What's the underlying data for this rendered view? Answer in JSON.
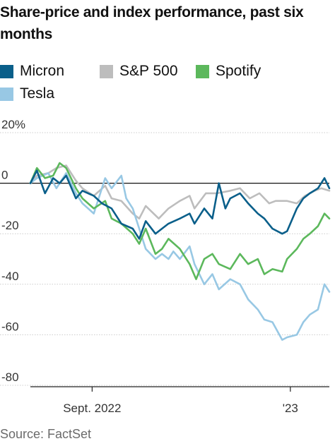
{
  "title": "Share-price and index performance, past six months",
  "source": "Source: FactSet",
  "legend": [
    {
      "name": "Micron",
      "color": "#0a5f8a"
    },
    {
      "name": "S&P 500",
      "color": "#bdbdbd"
    },
    {
      "name": "Spotify",
      "color": "#5cb85c"
    },
    {
      "name": "Tesla",
      "color": "#98c8e4"
    }
  ],
  "chart_data": {
    "type": "line",
    "ylim": [
      -80,
      20
    ],
    "yticks": [
      20,
      0,
      -20,
      -40,
      -60,
      -80
    ],
    "ytick_labels": [
      "20%",
      "0",
      "-20",
      "-40",
      "-60",
      "-80"
    ],
    "xlim": [
      "2022-07-25",
      "2023-01-25"
    ],
    "xticks": [
      {
        "date": "2022-09-01",
        "label": "Sept. 2022"
      },
      {
        "date": "2023-01-01",
        "label": "'23"
      }
    ],
    "series": [
      {
        "name": "S&P 500",
        "color": "#bdbdbd",
        "points": [
          [
            "2022-07-25",
            0
          ],
          [
            "2022-07-29",
            3
          ],
          [
            "2022-08-05",
            4
          ],
          [
            "2022-08-10",
            6
          ],
          [
            "2022-08-16",
            7
          ],
          [
            "2022-08-22",
            1
          ],
          [
            "2022-08-26",
            -2
          ],
          [
            "2022-09-02",
            -5
          ],
          [
            "2022-09-09",
            -1
          ],
          [
            "2022-09-13",
            -6
          ],
          [
            "2022-09-19",
            -7
          ],
          [
            "2022-09-26",
            -12
          ],
          [
            "2022-09-30",
            -14
          ],
          [
            "2022-10-04",
            -9
          ],
          [
            "2022-10-12",
            -14
          ],
          [
            "2022-10-18",
            -10
          ],
          [
            "2022-10-25",
            -7
          ],
          [
            "2022-10-31",
            -5
          ],
          [
            "2022-11-03",
            -10
          ],
          [
            "2022-11-10",
            -4
          ],
          [
            "2022-11-17",
            -4
          ],
          [
            "2022-11-25",
            -3
          ],
          [
            "2022-12-01",
            -2
          ],
          [
            "2022-12-07",
            -6
          ],
          [
            "2022-12-13",
            -4
          ],
          [
            "2022-12-19",
            -8
          ],
          [
            "2022-12-23",
            -7
          ],
          [
            "2022-12-30",
            -7
          ],
          [
            "2023-01-05",
            -8
          ],
          [
            "2023-01-10",
            -5
          ],
          [
            "2023-01-16",
            -3
          ],
          [
            "2023-01-20",
            -2
          ],
          [
            "2023-01-25",
            -3
          ]
        ]
      },
      {
        "name": "Tesla",
        "color": "#98c8e4",
        "points": [
          [
            "2022-07-25",
            0
          ],
          [
            "2022-07-29",
            2
          ],
          [
            "2022-08-05",
            4
          ],
          [
            "2022-08-10",
            -2
          ],
          [
            "2022-08-16",
            4
          ],
          [
            "2022-08-22",
            -4
          ],
          [
            "2022-08-26",
            -8
          ],
          [
            "2022-09-02",
            -12
          ],
          [
            "2022-09-09",
            2
          ],
          [
            "2022-09-13",
            -2
          ],
          [
            "2022-09-19",
            3
          ],
          [
            "2022-09-22",
            -6
          ],
          [
            "2022-09-26",
            -10
          ],
          [
            "2022-09-30",
            -18
          ],
          [
            "2022-10-04",
            -26
          ],
          [
            "2022-10-10",
            -30
          ],
          [
            "2022-10-14",
            -28
          ],
          [
            "2022-10-18",
            -30
          ],
          [
            "2022-10-21",
            -27
          ],
          [
            "2022-10-25",
            -30
          ],
          [
            "2022-10-31",
            -25
          ],
          [
            "2022-11-03",
            -32
          ],
          [
            "2022-11-09",
            -40
          ],
          [
            "2022-11-14",
            -36
          ],
          [
            "2022-11-18",
            -42
          ],
          [
            "2022-11-25",
            -38
          ],
          [
            "2022-12-01",
            -40
          ],
          [
            "2022-12-06",
            -46
          ],
          [
            "2022-12-12",
            -50
          ],
          [
            "2022-12-16",
            -54
          ],
          [
            "2022-12-21",
            -55
          ],
          [
            "2022-12-27",
            -62
          ],
          [
            "2022-12-30",
            -61
          ],
          [
            "2023-01-05",
            -60
          ],
          [
            "2023-01-09",
            -55
          ],
          [
            "2023-01-13",
            -52
          ],
          [
            "2023-01-18",
            -50
          ],
          [
            "2023-01-22",
            -40
          ],
          [
            "2023-01-25",
            -43
          ]
        ]
      },
      {
        "name": "Spotify",
        "color": "#5cb85c",
        "points": [
          [
            "2022-07-25",
            0
          ],
          [
            "2022-07-29",
            6
          ],
          [
            "2022-08-03",
            2
          ],
          [
            "2022-08-08",
            3
          ],
          [
            "2022-08-12",
            8
          ],
          [
            "2022-08-16",
            6
          ],
          [
            "2022-08-22",
            -2
          ],
          [
            "2022-08-26",
            -6
          ],
          [
            "2022-09-02",
            -10
          ],
          [
            "2022-09-09",
            -7
          ],
          [
            "2022-09-13",
            -14
          ],
          [
            "2022-09-19",
            -16
          ],
          [
            "2022-09-26",
            -20
          ],
          [
            "2022-09-30",
            -24
          ],
          [
            "2022-10-04",
            -18
          ],
          [
            "2022-10-10",
            -28
          ],
          [
            "2022-10-14",
            -26
          ],
          [
            "2022-10-18",
            -22
          ],
          [
            "2022-10-25",
            -26
          ],
          [
            "2022-10-31",
            -32
          ],
          [
            "2022-11-04",
            -38
          ],
          [
            "2022-11-09",
            -30
          ],
          [
            "2022-11-14",
            -28
          ],
          [
            "2022-11-18",
            -32
          ],
          [
            "2022-11-25",
            -34
          ],
          [
            "2022-12-01",
            -28
          ],
          [
            "2022-12-06",
            -32
          ],
          [
            "2022-12-12",
            -30
          ],
          [
            "2022-12-16",
            -36
          ],
          [
            "2022-12-21",
            -34
          ],
          [
            "2022-12-27",
            -35
          ],
          [
            "2022-12-30",
            -30
          ],
          [
            "2023-01-05",
            -26
          ],
          [
            "2023-01-09",
            -22
          ],
          [
            "2023-01-13",
            -20
          ],
          [
            "2023-01-18",
            -17
          ],
          [
            "2023-01-22",
            -12
          ],
          [
            "2023-01-25",
            -14
          ]
        ]
      },
      {
        "name": "Micron",
        "color": "#0a5f8a",
        "points": [
          [
            "2022-07-25",
            0
          ],
          [
            "2022-07-29",
            5
          ],
          [
            "2022-08-03",
            -4
          ],
          [
            "2022-08-08",
            2
          ],
          [
            "2022-08-12",
            0
          ],
          [
            "2022-08-16",
            3
          ],
          [
            "2022-08-22",
            -6
          ],
          [
            "2022-08-26",
            -3
          ],
          [
            "2022-09-02",
            -5
          ],
          [
            "2022-09-07",
            -8
          ],
          [
            "2022-09-13",
            -10
          ],
          [
            "2022-09-19",
            -16
          ],
          [
            "2022-09-26",
            -18
          ],
          [
            "2022-09-30",
            -22
          ],
          [
            "2022-10-04",
            -15
          ],
          [
            "2022-10-10",
            -20
          ],
          [
            "2022-10-14",
            -18
          ],
          [
            "2022-10-18",
            -16
          ],
          [
            "2022-10-25",
            -14
          ],
          [
            "2022-10-31",
            -12
          ],
          [
            "2022-11-03",
            -16
          ],
          [
            "2022-11-09",
            -10
          ],
          [
            "2022-11-14",
            -14
          ],
          [
            "2022-11-18",
            0
          ],
          [
            "2022-11-22",
            -10
          ],
          [
            "2022-11-25",
            -6
          ],
          [
            "2022-12-01",
            -4
          ],
          [
            "2022-12-06",
            -8
          ],
          [
            "2022-12-12",
            -12
          ],
          [
            "2022-12-16",
            -14
          ],
          [
            "2022-12-21",
            -18
          ],
          [
            "2022-12-27",
            -20
          ],
          [
            "2022-12-30",
            -19
          ],
          [
            "2023-01-05",
            -10
          ],
          [
            "2023-01-09",
            -6
          ],
          [
            "2023-01-13",
            -4
          ],
          [
            "2023-01-18",
            -2
          ],
          [
            "2023-01-22",
            2
          ],
          [
            "2023-01-25",
            -2
          ]
        ]
      }
    ]
  }
}
